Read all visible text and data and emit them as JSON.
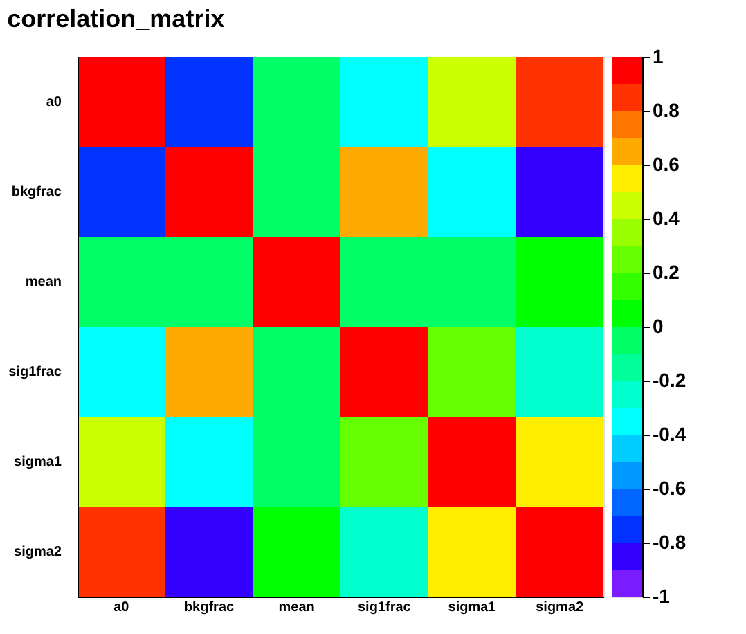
{
  "chart_data": {
    "type": "heatmap",
    "title": "correlation_matrix",
    "categories": [
      "a0",
      "bkgfrac",
      "mean",
      "sig1frac",
      "sigma1",
      "sigma2"
    ],
    "y_categories": [
      "a0",
      "bkgfrac",
      "mean",
      "sig1frac",
      "sigma1",
      "sigma2"
    ],
    "cells": [
      [
        1,
        -0.75,
        -0.05,
        -0.35,
        0.45,
        0.85
      ],
      [
        -0.75,
        1,
        -0.05,
        0.65,
        -0.35,
        -0.85
      ],
      [
        -0.05,
        -0.05,
        1,
        -0.05,
        -0.05,
        0.05
      ],
      [
        -0.35,
        0.65,
        -0.05,
        1,
        0.25,
        -0.25
      ],
      [
        0.45,
        -0.35,
        -0.05,
        0.25,
        1,
        0.55
      ],
      [
        0.85,
        -0.85,
        0.05,
        -0.25,
        0.55,
        1
      ]
    ],
    "clim": [
      -1,
      1
    ],
    "cticks": [
      -1,
      -0.8,
      -0.6,
      -0.4,
      -0.2,
      0,
      0.2,
      0.4,
      0.6,
      0.8,
      1
    ]
  }
}
